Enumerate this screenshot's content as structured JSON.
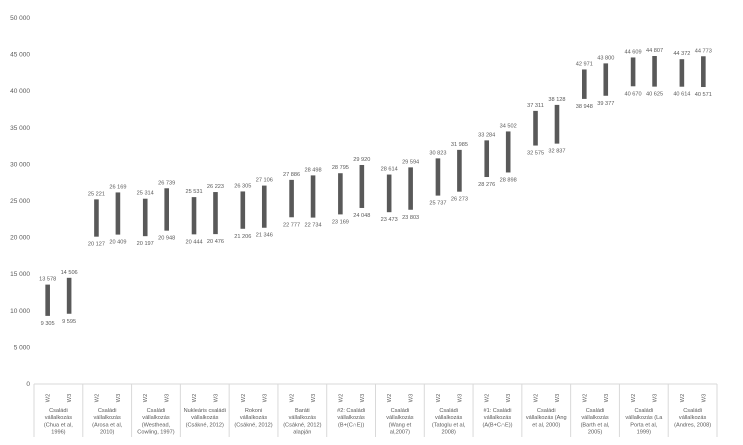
{
  "chart_data": {
    "type": "bar",
    "subtype": "floating-range",
    "title": "",
    "xlabel": "",
    "ylabel": "",
    "ylim": [
      0,
      50000
    ],
    "y_ticks": [
      "0",
      "5 000",
      "10 000",
      "15 000",
      "20 000",
      "25 000",
      "30 000",
      "35 000",
      "40 000",
      "45 000",
      "50 000"
    ],
    "grid": false,
    "legend": "none",
    "bar_color": "#595959",
    "groups": [
      {
        "lines": [
          "Családi",
          "vállalkozás",
          "(Chua et al,",
          "1996)"
        ],
        "bars": [
          {
            "label": "W2",
            "low": 9305,
            "high": 13578,
            "low_label": "9 305",
            "high_label": "13 578"
          },
          {
            "label": "W3",
            "low": 9595,
            "high": 14506,
            "low_label": "9 595",
            "high_label": "14 506"
          }
        ]
      },
      {
        "lines": [
          "Családi",
          "vállalkozás",
          "(Arosa et al,",
          "2010)"
        ],
        "bars": [
          {
            "label": "W2",
            "low": 20127,
            "high": 25221,
            "low_label": "20 127",
            "high_label": "25 221"
          },
          {
            "label": "W3",
            "low": 20409,
            "high": 26169,
            "low_label": "20 409",
            "high_label": "26 169"
          }
        ]
      },
      {
        "lines": [
          "Családi",
          "vállalkozás",
          "(Westhead,",
          "Cowling, 1997)"
        ],
        "bars": [
          {
            "label": "W2",
            "low": 20197,
            "high": 25314,
            "low_label": "20 197",
            "high_label": "25 314"
          },
          {
            "label": "W3",
            "low": 20948,
            "high": 26739,
            "low_label": "20 948",
            "high_label": "26 739"
          }
        ]
      },
      {
        "lines": [
          "Nukleáris családi",
          "vállalkozás",
          "(Csákné, 2012)"
        ],
        "bars": [
          {
            "label": "W2",
            "low": 20444,
            "high": 25531,
            "low_label": "20 444",
            "high_label": "25 531"
          },
          {
            "label": "W3",
            "low": 20476,
            "high": 26223,
            "low_label": "20 476",
            "high_label": "26 223"
          }
        ]
      },
      {
        "lines": [
          "Rokoni",
          "vállalkozás",
          "(Csákné, 2012)"
        ],
        "bars": [
          {
            "label": "W2",
            "low": 21206,
            "high": 26305,
            "low_label": "21 206",
            "high_label": "26 305"
          },
          {
            "label": "W3",
            "low": 21346,
            "high": 27106,
            "low_label": "21 346",
            "high_label": "27 106"
          }
        ]
      },
      {
        "lines": [
          "Baráti",
          "vállalkozás",
          "(Csákné, 2012)",
          "alapján"
        ],
        "bars": [
          {
            "label": "W2",
            "low": 22777,
            "high": 27886,
            "low_label": "22 777",
            "high_label": "27 886"
          },
          {
            "label": "W3",
            "low": 22734,
            "high": 28498,
            "low_label": "22 734",
            "high_label": "28 498"
          }
        ]
      },
      {
        "lines": [
          "#2: Családi",
          "vállalkozás",
          "(B+(C∩E))"
        ],
        "bars": [
          {
            "label": "W2",
            "low": 23169,
            "high": 28795,
            "low_label": "23 169",
            "high_label": "28 795"
          },
          {
            "label": "W3",
            "low": 24048,
            "high": 29920,
            "low_label": "24 048",
            "high_label": "29 920"
          }
        ]
      },
      {
        "lines": [
          "Családi",
          "vállalkozás",
          "(Wang et",
          "al,2007)"
        ],
        "bars": [
          {
            "label": "W2",
            "low": 23473,
            "high": 28614,
            "low_label": "23 473",
            "high_label": "28 614"
          },
          {
            "label": "W3",
            "low": 23803,
            "high": 29594,
            "low_label": "23 803",
            "high_label": "29 594"
          }
        ]
      },
      {
        "lines": [
          "Családi",
          "vállalkozás",
          "(Tatoglu et al,",
          "2008)"
        ],
        "bars": [
          {
            "label": "W2",
            "low": 25737,
            "high": 30823,
            "low_label": "25 737",
            "high_label": "30 823"
          },
          {
            "label": "W3",
            "low": 26273,
            "high": 31985,
            "low_label": "26 273",
            "high_label": "31 985"
          }
        ]
      },
      {
        "lines": [
          "#1: Családi",
          "vállalkozás",
          "(A(B+C∩E))"
        ],
        "bars": [
          {
            "label": "W2",
            "low": 28276,
            "high": 33284,
            "low_label": "28 276",
            "high_label": "33 284"
          },
          {
            "label": "W3",
            "low": 28898,
            "high": 34502,
            "low_label": "28 898",
            "high_label": "34 502"
          }
        ]
      },
      {
        "lines": [
          "Családi",
          "vállalkozás (Ang",
          "et al, 2000)"
        ],
        "bars": [
          {
            "label": "W2",
            "low": 32575,
            "high": 37311,
            "low_label": "32 575",
            "high_label": "37 311"
          },
          {
            "label": "W3",
            "low": 32837,
            "high": 38128,
            "low_label": "32 837",
            "high_label": "38 128"
          }
        ]
      },
      {
        "lines": [
          "Családi",
          "vállalkozás",
          "(Barth et al,",
          "2005)"
        ],
        "bars": [
          {
            "label": "W2",
            "low": 38948,
            "high": 42971,
            "low_label": "38 948",
            "high_label": "42 971"
          },
          {
            "label": "W3",
            "low": 39377,
            "high": 43800,
            "low_label": "39 377",
            "high_label": "43 800"
          }
        ]
      },
      {
        "lines": [
          "Családi",
          "vállalkozás (La",
          "Porta et al,",
          "1999)"
        ],
        "bars": [
          {
            "label": "W2",
            "low": 40670,
            "high": 44609,
            "low_label": "40 670",
            "high_label": "44 609"
          },
          {
            "label": "W3",
            "low": 40625,
            "high": 44807,
            "low_label": "40 625",
            "high_label": "44 807"
          }
        ]
      },
      {
        "lines": [
          "Családi",
          "vállalkozás",
          "(Andres, 2008)"
        ],
        "bars": [
          {
            "label": "W2",
            "low": 40614,
            "high": 44372,
            "low_label": "40 614",
            "high_label": "44 372"
          },
          {
            "label": "W3",
            "low": 40571,
            "high": 44773,
            "low_label": "40 571",
            "high_label": "44 773"
          }
        ]
      }
    ]
  }
}
